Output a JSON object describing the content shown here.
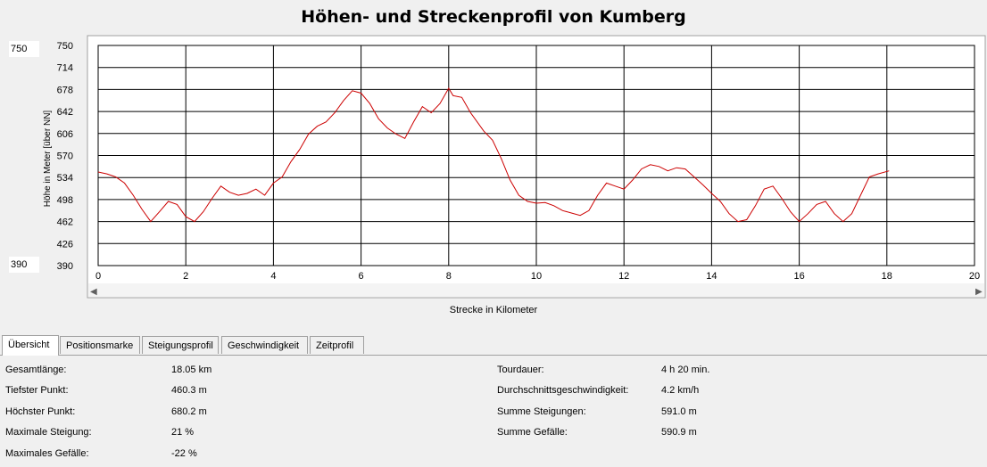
{
  "title": "Höhen- und Streckenprofil von Kumberg",
  "y_inputs": {
    "max": "750",
    "min": "390"
  },
  "chart_data": {
    "type": "line",
    "ylabel": "Höhe in Meter [über NN]",
    "xlabel": "Strecke in Kilometer",
    "ylim": [
      390,
      750
    ],
    "xlim": [
      0,
      20
    ],
    "yticks": [
      "750",
      "714",
      "678",
      "642",
      "606",
      "570",
      "534",
      "498",
      "462",
      "426",
      "390"
    ],
    "xticks": [
      "0",
      "2",
      "4",
      "6",
      "8",
      "10",
      "12",
      "14",
      "16",
      "18",
      "20"
    ],
    "grid": true,
    "line_color": "#cc0000",
    "series": [
      {
        "x": [
          0,
          0.2,
          0.4,
          0.6,
          0.8,
          1.0,
          1.2,
          1.4,
          1.6,
          1.8,
          2.0,
          2.2,
          2.4,
          2.6,
          2.8,
          3.0,
          3.2,
          3.4,
          3.6,
          3.8,
          4.0,
          4.2,
          4.4,
          4.6,
          4.8,
          5.0,
          5.2,
          5.4,
          5.6,
          5.8,
          6.0,
          6.2,
          6.4,
          6.6,
          6.8,
          7.0,
          7.2,
          7.4,
          7.6,
          7.8,
          8.0,
          8.1,
          8.3,
          8.5,
          8.8,
          9.0,
          9.2,
          9.4,
          9.6,
          9.8,
          10.0,
          10.2,
          10.4,
          10.6,
          10.8,
          11.0,
          11.2,
          11.4,
          11.6,
          11.8,
          12.0,
          12.2,
          12.4,
          12.6,
          12.8,
          13.0,
          13.2,
          13.4,
          13.6,
          13.8,
          14.0,
          14.2,
          14.4,
          14.6,
          14.8,
          15.0,
          15.2,
          15.4,
          15.6,
          15.8,
          16.0,
          16.2,
          16.4,
          16.6,
          16.8,
          17.0,
          17.2,
          17.4,
          17.6,
          17.8,
          18.05
        ],
        "y": [
          543,
          540,
          535,
          525,
          505,
          482,
          462,
          478,
          495,
          490,
          470,
          462,
          478,
          500,
          520,
          510,
          505,
          508,
          515,
          505,
          525,
          535,
          560,
          580,
          605,
          618,
          625,
          640,
          660,
          676,
          672,
          655,
          630,
          615,
          605,
          598,
          625,
          650,
          640,
          655,
          680,
          668,
          665,
          640,
          610,
          595,
          565,
          530,
          505,
          495,
          492,
          493,
          488,
          480,
          476,
          472,
          480,
          505,
          525,
          520,
          515,
          530,
          548,
          555,
          552,
          545,
          550,
          548,
          535,
          522,
          508,
          495,
          475,
          462,
          465,
          488,
          515,
          520,
          500,
          478,
          462,
          475,
          490,
          495,
          475,
          462,
          475,
          505,
          535,
          540,
          545
        ]
      }
    ]
  },
  "tabs": [
    "Übersicht",
    "Positionsmarke",
    "Steigungsprofil",
    "Geschwindigkeit",
    "Zeitprofil"
  ],
  "stats": {
    "left": [
      {
        "label": "Gesamtlänge:",
        "value": "18.05 km"
      },
      {
        "label": "Tiefster Punkt:",
        "value": "460.3 m"
      },
      {
        "label": "Höchster Punkt:",
        "value": "680.2 m"
      },
      {
        "label": "Maximale Steigung:",
        "value": "21 %"
      },
      {
        "label": "Maximales Gefälle:",
        "value": "-22 %"
      }
    ],
    "right": [
      {
        "label": "Tourdauer:",
        "value": "4 h 20 min."
      },
      {
        "label": "Durchschnittsgeschwindigkeit:",
        "value": "4.2 km/h"
      },
      {
        "label": "Summe Steigungen:",
        "value": "591.0 m"
      },
      {
        "label": "Summe Gefälle:",
        "value": "590.9 m"
      }
    ]
  }
}
